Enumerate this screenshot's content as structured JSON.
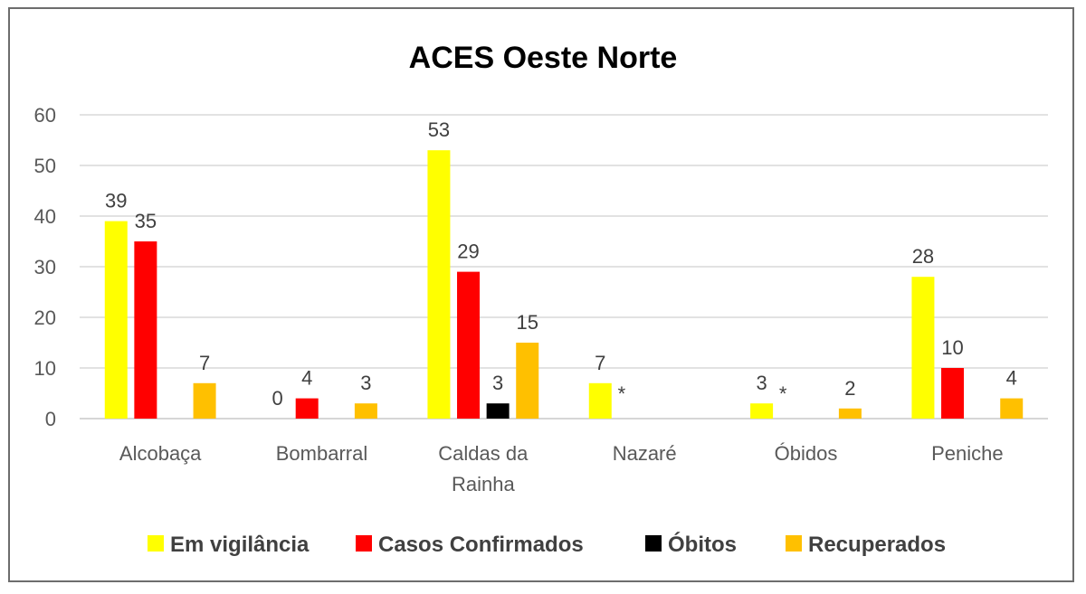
{
  "chart_data": {
    "type": "bar",
    "title": "ACES Oeste Norte",
    "xlabel": "",
    "ylabel": "",
    "ylim": [
      0,
      60
    ],
    "yticks": [
      0,
      10,
      20,
      30,
      40,
      50,
      60
    ],
    "grid": true,
    "legend_position": "bottom",
    "categories": [
      [
        "Alcobaça"
      ],
      [
        "Bombarral"
      ],
      [
        "Caldas da",
        "Rainha"
      ],
      [
        "Nazaré"
      ],
      [
        "Óbidos"
      ],
      [
        "Peniche"
      ]
    ],
    "series": [
      {
        "name": "Em vigilância",
        "color": "#ffff00",
        "values": [
          39,
          0,
          53,
          7,
          3,
          28
        ],
        "labels": [
          "39",
          "0",
          "53",
          "7",
          "3",
          "28"
        ]
      },
      {
        "name": "Casos Confirmados",
        "color": "#ff0000",
        "values": [
          35,
          4,
          29,
          null,
          null,
          10
        ],
        "labels": [
          "35",
          "4",
          "29",
          "*",
          "*",
          "10"
        ]
      },
      {
        "name": "Óbitos",
        "color": "#000000",
        "values": [
          null,
          null,
          3,
          null,
          null,
          null
        ],
        "labels": [
          null,
          null,
          "3",
          null,
          null,
          null
        ]
      },
      {
        "name": "Recuperados",
        "color": "#ffc000",
        "values": [
          7,
          3,
          15,
          null,
          2,
          4
        ],
        "labels": [
          "7",
          "3",
          "15",
          null,
          "2",
          "4"
        ]
      }
    ]
  }
}
